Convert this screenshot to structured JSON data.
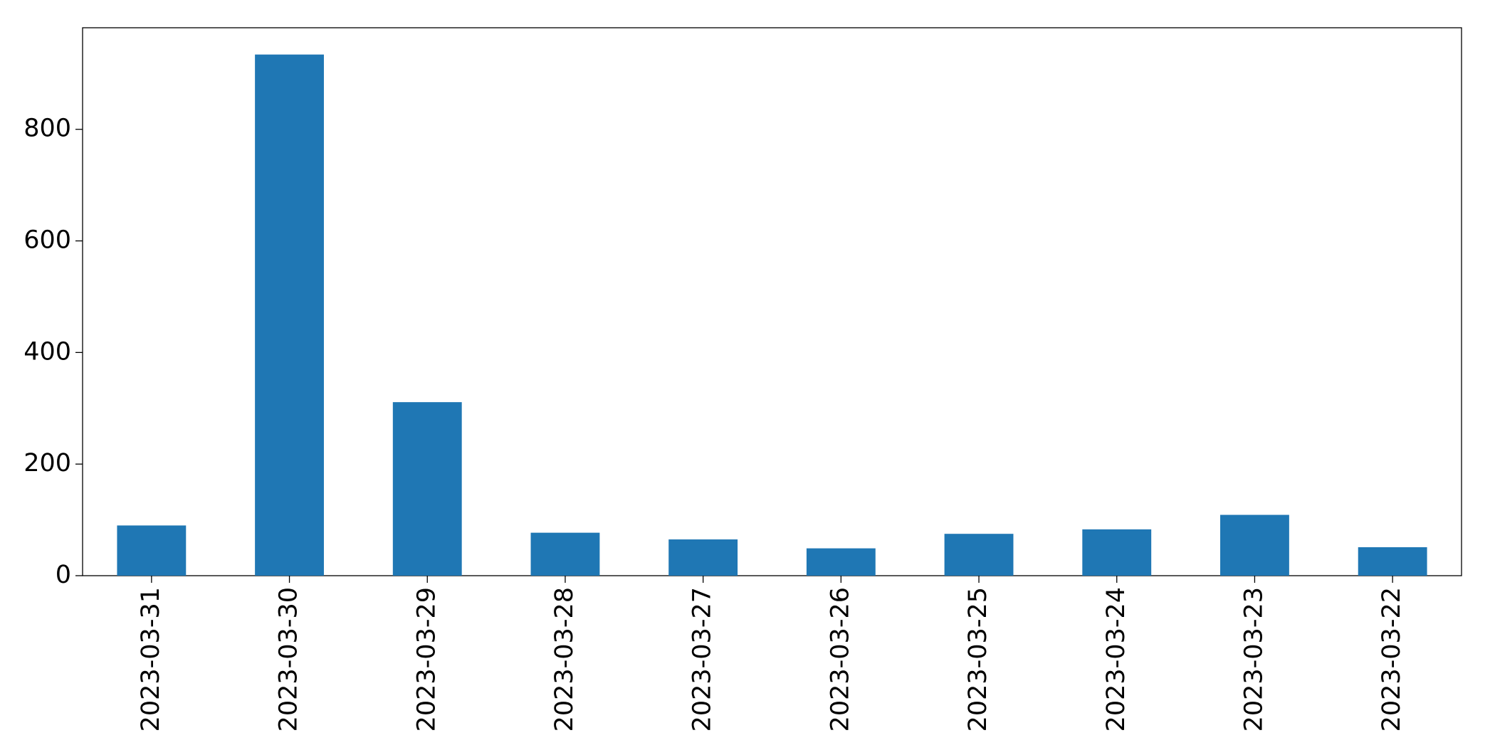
{
  "chart_data": {
    "type": "bar",
    "categories": [
      "2023-03-31",
      "2023-03-30",
      "2023-03-29",
      "2023-03-28",
      "2023-03-27",
      "2023-03-26",
      "2023-03-25",
      "2023-03-24",
      "2023-03-23",
      "2023-03-22"
    ],
    "values": [
      90,
      934,
      311,
      77,
      65,
      49,
      75,
      83,
      109,
      51
    ],
    "color": "#1f77b4",
    "ylim": [
      0,
      982
    ],
    "yticks": [
      0,
      200,
      400,
      600,
      800
    ],
    "grid": false
  }
}
